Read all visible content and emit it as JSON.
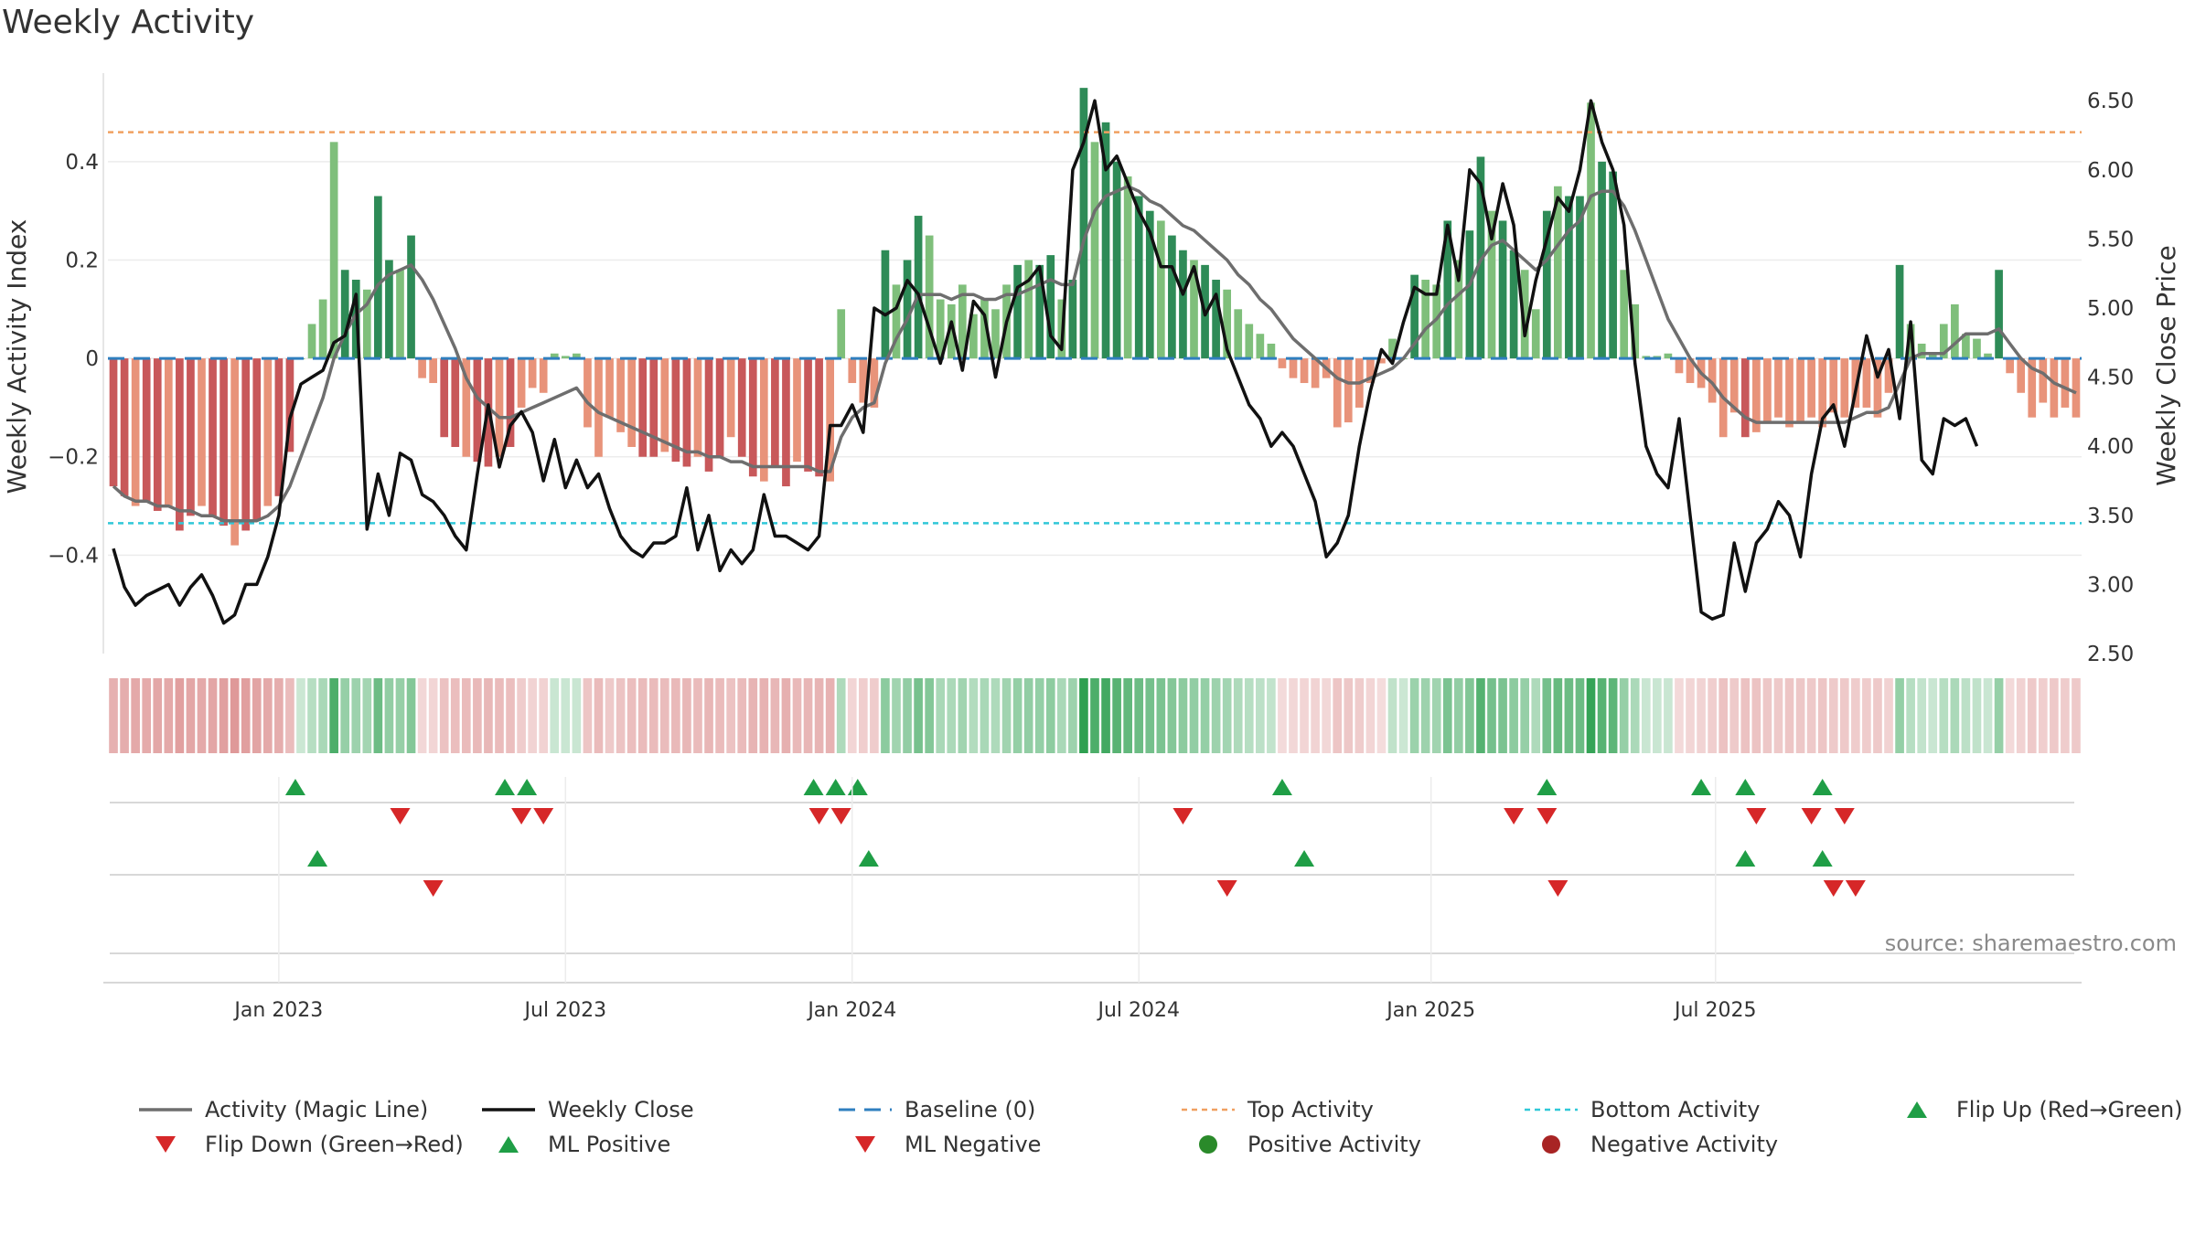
{
  "title": "Weekly Activity",
  "source": "source: sharemaestro.com",
  "colors": {
    "pos_dark": "#2e8b57",
    "pos_light": "#7fbf7b",
    "neg_dark": "#c8585a",
    "neg_light": "#e8937a",
    "magic": "#6e6e6e",
    "close": "#111111",
    "baseline": "#2f7fbf",
    "top": "#f0a060",
    "bottom": "#30c8d8",
    "tri_up": "#1f9e46",
    "tri_down": "#d62728"
  },
  "chart_data": {
    "type": "bar",
    "title": "Weekly Activity",
    "ylabel": "Weekly Activity Index",
    "ylabel_right": "Weekly Close Price",
    "ylim": [
      -0.6,
      0.58
    ],
    "ylim_right": [
      2.5,
      6.7
    ],
    "yticks": [
      -0.4,
      -0.2,
      0,
      0.2,
      0.4
    ],
    "yticks_right": [
      2.5,
      3.0,
      3.5,
      4.0,
      4.5,
      5.0,
      5.5,
      6.0,
      6.5
    ],
    "ytick_labels": [
      "−0.4",
      "−0.2",
      "0",
      "0.2",
      "0.4"
    ],
    "ytick_labels_right": [
      "2.50",
      "3.00",
      "3.50",
      "4.00",
      "4.50",
      "5.00",
      "5.50",
      "6.00",
      "6.50"
    ],
    "x_start": "2022-10-03",
    "x_ticks": [
      {
        "label": "Jan 2023",
        "week": 15
      },
      {
        "label": "Jul 2023",
        "week": 41
      },
      {
        "label": "Jan 2024",
        "week": 67
      },
      {
        "label": "Jul 2024",
        "week": 93
      },
      {
        "label": "Jan 2025",
        "week": 119.5
      },
      {
        "label": "Jul 2025",
        "week": 145.3
      }
    ],
    "top_activity": 0.46,
    "bottom_activity": -0.335,
    "baseline": 0,
    "activity": [
      -0.26,
      -0.28,
      -0.3,
      -0.29,
      -0.31,
      -0.3,
      -0.35,
      -0.32,
      -0.3,
      -0.32,
      -0.34,
      -0.38,
      -0.35,
      -0.33,
      -0.3,
      -0.28,
      -0.19,
      0.0,
      0.07,
      0.12,
      0.44,
      0.18,
      0.16,
      0.14,
      0.33,
      0.2,
      0.18,
      0.25,
      -0.04,
      -0.05,
      -0.16,
      -0.18,
      -0.2,
      -0.21,
      -0.22,
      -0.2,
      -0.18,
      -0.1,
      -0.06,
      -0.07,
      0.01,
      0.005,
      0.01,
      -0.14,
      -0.2,
      -0.12,
      -0.15,
      -0.18,
      -0.2,
      -0.2,
      -0.19,
      -0.21,
      -0.22,
      -0.2,
      -0.23,
      -0.2,
      -0.16,
      -0.2,
      -0.24,
      -0.25,
      -0.22,
      -0.26,
      -0.21,
      -0.23,
      -0.24,
      -0.25,
      0.1,
      -0.05,
      -0.09,
      -0.1,
      0.22,
      0.15,
      0.2,
      0.29,
      0.25,
      0.12,
      0.11,
      0.15,
      0.09,
      0.12,
      0.1,
      0.15,
      0.19,
      0.2,
      0.19,
      0.21,
      0.12,
      0.16,
      0.55,
      0.44,
      0.48,
      0.4,
      0.37,
      0.33,
      0.3,
      0.28,
      0.25,
      0.22,
      0.2,
      0.19,
      0.16,
      0.14,
      0.1,
      0.07,
      0.05,
      0.03,
      -0.02,
      -0.04,
      -0.05,
      -0.06,
      -0.04,
      -0.14,
      -0.13,
      -0.1,
      -0.05,
      -0.01,
      0.04,
      0.0,
      0.17,
      0.16,
      0.15,
      0.28,
      0.2,
      0.26,
      0.41,
      0.3,
      0.28,
      0.22,
      0.18,
      0.1,
      0.3,
      0.35,
      0.33,
      0.33,
      0.52,
      0.4,
      0.38,
      0.18,
      0.11,
      0.005,
      0.005,
      0.01,
      -0.03,
      -0.05,
      -0.06,
      -0.09,
      -0.16,
      -0.11,
      -0.16,
      -0.15,
      -0.13,
      -0.12,
      -0.14,
      -0.13,
      -0.12,
      -0.14,
      -0.11,
      -0.12,
      -0.1,
      -0.1,
      -0.12,
      -0.07,
      0.19,
      0.07,
      0.03,
      0.01,
      0.07,
      0.11,
      0.05,
      0.04,
      0.01,
      0.18,
      -0.03,
      -0.07,
      -0.12,
      -0.09,
      -0.12,
      -0.1,
      -0.12
    ],
    "magic_line": [
      -0.26,
      -0.28,
      -0.29,
      -0.29,
      -0.3,
      -0.3,
      -0.31,
      -0.31,
      -0.32,
      -0.32,
      -0.33,
      -0.33,
      -0.33,
      -0.33,
      -0.32,
      -0.3,
      -0.26,
      -0.2,
      -0.14,
      -0.08,
      0.0,
      0.05,
      0.09,
      0.11,
      0.15,
      0.17,
      0.18,
      0.19,
      0.16,
      0.12,
      0.07,
      0.02,
      -0.04,
      -0.08,
      -0.1,
      -0.12,
      -0.12,
      -0.11,
      -0.1,
      -0.09,
      -0.08,
      -0.07,
      -0.06,
      -0.09,
      -0.11,
      -0.12,
      -0.13,
      -0.14,
      -0.15,
      -0.16,
      -0.17,
      -0.18,
      -0.19,
      -0.19,
      -0.2,
      -0.2,
      -0.21,
      -0.21,
      -0.22,
      -0.22,
      -0.22,
      -0.22,
      -0.22,
      -0.22,
      -0.23,
      -0.23,
      -0.16,
      -0.12,
      -0.1,
      -0.09,
      -0.01,
      0.04,
      0.08,
      0.13,
      0.13,
      0.13,
      0.12,
      0.13,
      0.13,
      0.12,
      0.12,
      0.13,
      0.13,
      0.14,
      0.15,
      0.16,
      0.15,
      0.15,
      0.24,
      0.3,
      0.33,
      0.34,
      0.35,
      0.34,
      0.32,
      0.31,
      0.29,
      0.27,
      0.26,
      0.24,
      0.22,
      0.2,
      0.17,
      0.15,
      0.12,
      0.1,
      0.07,
      0.04,
      0.02,
      0.0,
      -0.02,
      -0.04,
      -0.05,
      -0.05,
      -0.04,
      -0.03,
      -0.02,
      0.0,
      0.03,
      0.06,
      0.08,
      0.11,
      0.13,
      0.15,
      0.2,
      0.23,
      0.24,
      0.22,
      0.2,
      0.18,
      0.2,
      0.23,
      0.26,
      0.28,
      0.33,
      0.34,
      0.34,
      0.31,
      0.26,
      0.2,
      0.14,
      0.08,
      0.04,
      0.0,
      -0.03,
      -0.05,
      -0.08,
      -0.1,
      -0.12,
      -0.13,
      -0.13,
      -0.13,
      -0.13,
      -0.13,
      -0.13,
      -0.13,
      -0.13,
      -0.13,
      -0.12,
      -0.11,
      -0.11,
      -0.1,
      -0.05,
      0.0,
      0.01,
      0.01,
      0.01,
      0.03,
      0.05,
      0.05,
      0.05,
      0.06,
      0.03,
      0.0,
      -0.02,
      -0.03,
      -0.05,
      -0.06,
      -0.07
    ],
    "weekly_close": [
      3.26,
      2.98,
      2.85,
      2.92,
      2.96,
      3.0,
      2.85,
      2.98,
      3.07,
      2.92,
      2.72,
      2.78,
      3.0,
      3.0,
      3.2,
      3.5,
      4.2,
      4.45,
      4.5,
      4.55,
      4.75,
      4.8,
      5.1,
      3.4,
      3.8,
      3.5,
      3.95,
      3.9,
      3.65,
      3.6,
      3.5,
      3.35,
      3.25,
      3.8,
      4.3,
      3.85,
      4.15,
      4.25,
      4.1,
      3.75,
      4.05,
      3.7,
      3.9,
      3.7,
      3.8,
      3.55,
      3.35,
      3.25,
      3.2,
      3.3,
      3.3,
      3.35,
      3.7,
      3.25,
      3.5,
      3.1,
      3.25,
      3.15,
      3.25,
      3.65,
      3.35,
      3.35,
      3.3,
      3.25,
      3.35,
      4.15,
      4.15,
      4.3,
      4.1,
      5.0,
      4.95,
      5.0,
      5.2,
      5.1,
      4.85,
      4.6,
      4.9,
      4.55,
      5.05,
      4.95,
      4.5,
      4.9,
      5.15,
      5.2,
      5.3,
      4.8,
      4.7,
      6.0,
      6.2,
      6.5,
      6.0,
      6.1,
      5.9,
      5.7,
      5.55,
      5.3,
      5.3,
      5.1,
      5.3,
      4.95,
      5.1,
      4.7,
      4.5,
      4.3,
      4.2,
      4.0,
      4.1,
      4.0,
      3.8,
      3.6,
      3.2,
      3.3,
      3.5,
      4.0,
      4.4,
      4.7,
      4.6,
      4.9,
      5.15,
      5.1,
      5.1,
      5.6,
      5.2,
      6.0,
      5.9,
      5.5,
      5.9,
      5.6,
      4.8,
      5.2,
      5.5,
      5.8,
      5.7,
      6.0,
      6.5,
      6.2,
      6.0,
      5.6,
      4.6,
      4.0,
      3.8,
      3.7,
      4.2,
      3.5,
      2.8,
      2.75,
      2.78,
      3.3,
      2.95,
      3.3,
      3.4,
      3.6,
      3.5,
      3.2,
      3.8,
      4.2,
      4.3,
      4.0,
      4.4,
      4.8,
      4.5,
      4.7,
      4.2,
      4.9,
      3.9,
      3.8,
      4.2,
      4.15,
      4.2,
      4.0
    ],
    "flip_up_weeks": [
      16.5,
      35.5,
      37.5,
      63.5,
      65.5,
      67.5,
      106,
      130,
      144,
      148,
      155
    ],
    "flip_down_weeks": [
      26,
      37,
      39,
      64,
      66,
      97,
      127,
      130,
      149,
      154,
      157
    ],
    "ml_positive_weeks": [
      18.5,
      68.5,
      108,
      148,
      155
    ],
    "ml_negative_weeks": [
      29,
      101,
      131,
      156,
      158
    ]
  },
  "legend": [
    {
      "label": "Activity (Magic Line)",
      "kind": "magic"
    },
    {
      "label": "Weekly Close",
      "kind": "close"
    },
    {
      "label": "Baseline (0)",
      "kind": "baseline"
    },
    {
      "label": "Top Activity",
      "kind": "top"
    },
    {
      "label": "Bottom Activity",
      "kind": "bottom"
    },
    {
      "label": "Flip Up (Red→Green)",
      "kind": "tri_up"
    },
    {
      "label": "Flip Down (Green→Red)",
      "kind": "tri_down"
    },
    {
      "label": "ML Positive",
      "kind": "tri_up"
    },
    {
      "label": "ML Negative",
      "kind": "tri_down"
    },
    {
      "label": "Positive Activity",
      "kind": "dot_pos"
    },
    {
      "label": "Negative Activity",
      "kind": "dot_neg"
    }
  ]
}
